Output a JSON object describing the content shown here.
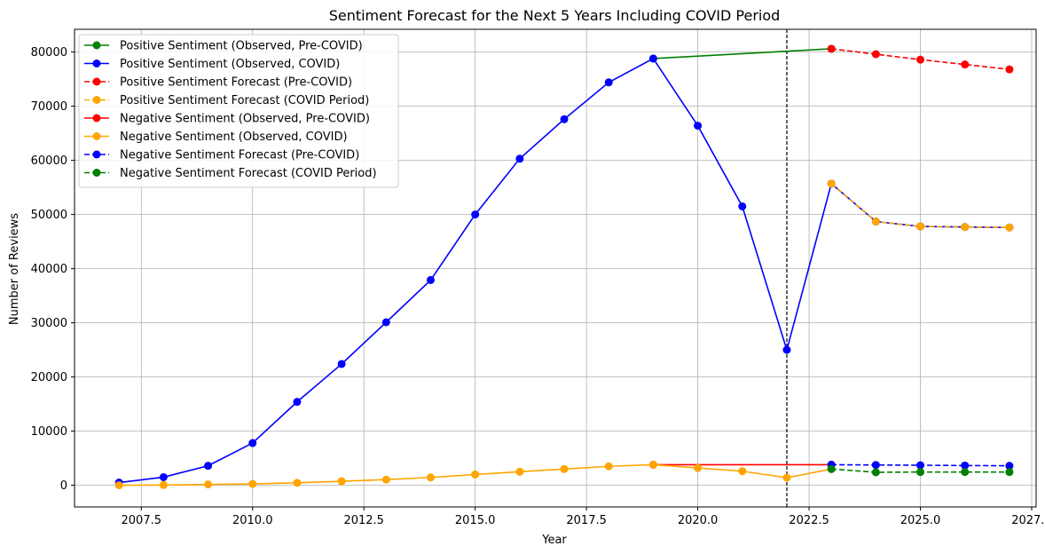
{
  "chart_data": {
    "type": "line",
    "title": "Sentiment Forecast for the Next 5 Years Including COVID Period",
    "xlabel": "Year",
    "ylabel": "Number of Reviews",
    "xlim": [
      2006.0,
      2027.6
    ],
    "ylim": [
      -4000,
      84200
    ],
    "xticks": [
      2007.5,
      2010.0,
      2012.5,
      2015.0,
      2017.5,
      2020.0,
      2022.5,
      2025.0,
      2027.5
    ],
    "xtick_labels": [
      "2007.5",
      "2010.0",
      "2012.5",
      "2015.0",
      "2017.5",
      "2020.0",
      "2022.5",
      "2025.0",
      "2027.5"
    ],
    "yticks": [
      0,
      10000,
      20000,
      30000,
      40000,
      50000,
      60000,
      70000,
      80000
    ],
    "ytick_labels": [
      "0",
      "10000",
      "20000",
      "30000",
      "40000",
      "50000",
      "60000",
      "70000",
      "80000"
    ],
    "grid": true,
    "legend_position": "top-left",
    "vline_x": 2022,
    "series": [
      {
        "name": "Positive Sentiment (Observed, Pre-COVID)",
        "color": "#008000",
        "style": "solid",
        "points": [
          [
            2019,
            78800
          ],
          [
            2023,
            80600
          ]
        ]
      },
      {
        "name": "Positive Sentiment (Observed, COVID)",
        "color": "#0000ff",
        "style": "solid",
        "points": [
          [
            2007,
            500
          ],
          [
            2008,
            1500
          ],
          [
            2009,
            3600
          ],
          [
            2010,
            7800
          ],
          [
            2011,
            15400
          ],
          [
            2012,
            22400
          ],
          [
            2013,
            30100
          ],
          [
            2014,
            37900
          ],
          [
            2015,
            50000
          ],
          [
            2016,
            60300
          ],
          [
            2017,
            67600
          ],
          [
            2018,
            74400
          ],
          [
            2019,
            78800
          ],
          [
            2020,
            66400
          ],
          [
            2021,
            51500
          ],
          [
            2022,
            25000
          ],
          [
            2023,
            55700
          ],
          [
            2024,
            48700
          ],
          [
            2025,
            47800
          ],
          [
            2026,
            47700
          ],
          [
            2027,
            47600
          ]
        ]
      },
      {
        "name": "Positive Sentiment Forecast (Pre-COVID)",
        "color": "#ff0000",
        "style": "dashed",
        "points": [
          [
            2023,
            80600
          ],
          [
            2024,
            79600
          ],
          [
            2025,
            78600
          ],
          [
            2026,
            77700
          ],
          [
            2027,
            76800
          ]
        ]
      },
      {
        "name": "Positive Sentiment Forecast (COVID Period)",
        "color": "#ffa500",
        "style": "dashed",
        "points": [
          [
            2023,
            55700
          ],
          [
            2024,
            48700
          ],
          [
            2025,
            47800
          ],
          [
            2026,
            47700
          ],
          [
            2027,
            47600
          ]
        ]
      },
      {
        "name": "Negative Sentiment (Observed, Pre-COVID)",
        "color": "#ff0000",
        "style": "solid",
        "points": [
          [
            2019,
            3800
          ],
          [
            2023,
            3800
          ]
        ]
      },
      {
        "name": "Negative Sentiment (Observed, COVID)",
        "color": "#ffa500",
        "style": "solid",
        "points": [
          [
            2007,
            0
          ],
          [
            2008,
            50
          ],
          [
            2009,
            150
          ],
          [
            2010,
            250
          ],
          [
            2011,
            450
          ],
          [
            2012,
            750
          ],
          [
            2013,
            1050
          ],
          [
            2014,
            1450
          ],
          [
            2015,
            2000
          ],
          [
            2016,
            2500
          ],
          [
            2017,
            3000
          ],
          [
            2018,
            3500
          ],
          [
            2019,
            3800
          ],
          [
            2020,
            3200
          ],
          [
            2021,
            2600
          ],
          [
            2022,
            1400
          ],
          [
            2023,
            3000
          ]
        ]
      },
      {
        "name": "Negative Sentiment Forecast (Pre-COVID)",
        "color": "#0000ff",
        "style": "dashed",
        "points": [
          [
            2023,
            3800
          ],
          [
            2024,
            3750
          ],
          [
            2025,
            3700
          ],
          [
            2026,
            3650
          ],
          [
            2027,
            3600
          ]
        ]
      },
      {
        "name": "Negative Sentiment Forecast (COVID Period)",
        "color": "#008000",
        "style": "dashed",
        "points": [
          [
            2023,
            3000
          ],
          [
            2024,
            2400
          ],
          [
            2025,
            2450
          ],
          [
            2026,
            2450
          ],
          [
            2027,
            2450
          ]
        ]
      }
    ]
  }
}
